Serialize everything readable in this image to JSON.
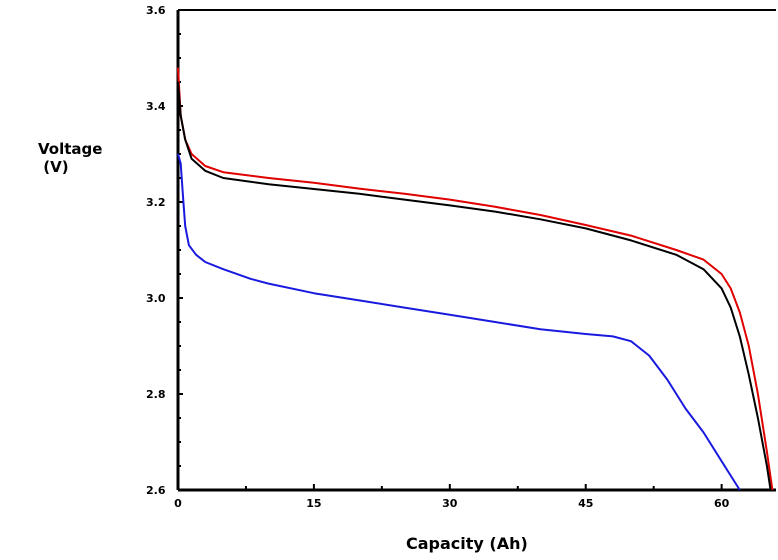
{
  "chart_data": {
    "type": "line",
    "title": "",
    "xlabel": "Capacity (Ah)",
    "ylabel_line1": "Voltage",
    "ylabel_line2": "(V)",
    "xlim": [
      0,
      66
    ],
    "ylim": [
      2.6,
      3.6
    ],
    "xticks": [
      0,
      15,
      30,
      45,
      60
    ],
    "xtick_labels": [
      "0",
      "15",
      "30",
      "45",
      "60"
    ],
    "yticks": [
      2.6,
      2.8,
      3.0,
      3.2,
      3.4,
      3.6
    ],
    "ytick_labels": [
      "2.6",
      "2.8",
      "3.0",
      "3.2",
      "3.4",
      "3.6"
    ],
    "grid": false,
    "legend": "none",
    "series": [
      {
        "color": "#e00000",
        "x": [
          0,
          0.3,
          0.8,
          1.5,
          3,
          5,
          10,
          15,
          20,
          25,
          30,
          35,
          40,
          45,
          50,
          55,
          58,
          60,
          61,
          62,
          63,
          64,
          65,
          65.6
        ],
        "y": [
          3.48,
          3.38,
          3.33,
          3.3,
          3.275,
          3.262,
          3.25,
          3.24,
          3.228,
          3.217,
          3.205,
          3.19,
          3.173,
          3.152,
          3.13,
          3.1,
          3.08,
          3.05,
          3.02,
          2.97,
          2.9,
          2.8,
          2.68,
          2.6
        ]
      },
      {
        "color": "#000000",
        "x": [
          0,
          0.3,
          0.8,
          1.5,
          3,
          5,
          10,
          15,
          20,
          25,
          30,
          35,
          40,
          45,
          50,
          55,
          58,
          60,
          61,
          62,
          63,
          64,
          65,
          65.4
        ],
        "y": [
          3.45,
          3.38,
          3.33,
          3.29,
          3.265,
          3.25,
          3.237,
          3.227,
          3.217,
          3.205,
          3.193,
          3.18,
          3.164,
          3.145,
          3.12,
          3.09,
          3.06,
          3.02,
          2.98,
          2.92,
          2.84,
          2.75,
          2.65,
          2.6
        ]
      },
      {
        "color": "#1a1adf",
        "x": [
          0,
          0.3,
          0.6,
          0.8,
          1.2,
          2,
          3,
          5,
          8,
          10,
          15,
          20,
          25,
          30,
          35,
          40,
          45,
          48,
          50,
          52,
          54,
          56,
          58,
          60,
          61,
          62
        ],
        "y": [
          3.3,
          3.28,
          3.2,
          3.15,
          3.11,
          3.09,
          3.075,
          3.06,
          3.04,
          3.03,
          3.01,
          2.995,
          2.98,
          2.965,
          2.95,
          2.935,
          2.925,
          2.92,
          2.91,
          2.88,
          2.83,
          2.77,
          2.72,
          2.66,
          2.63,
          2.6
        ]
      }
    ]
  }
}
